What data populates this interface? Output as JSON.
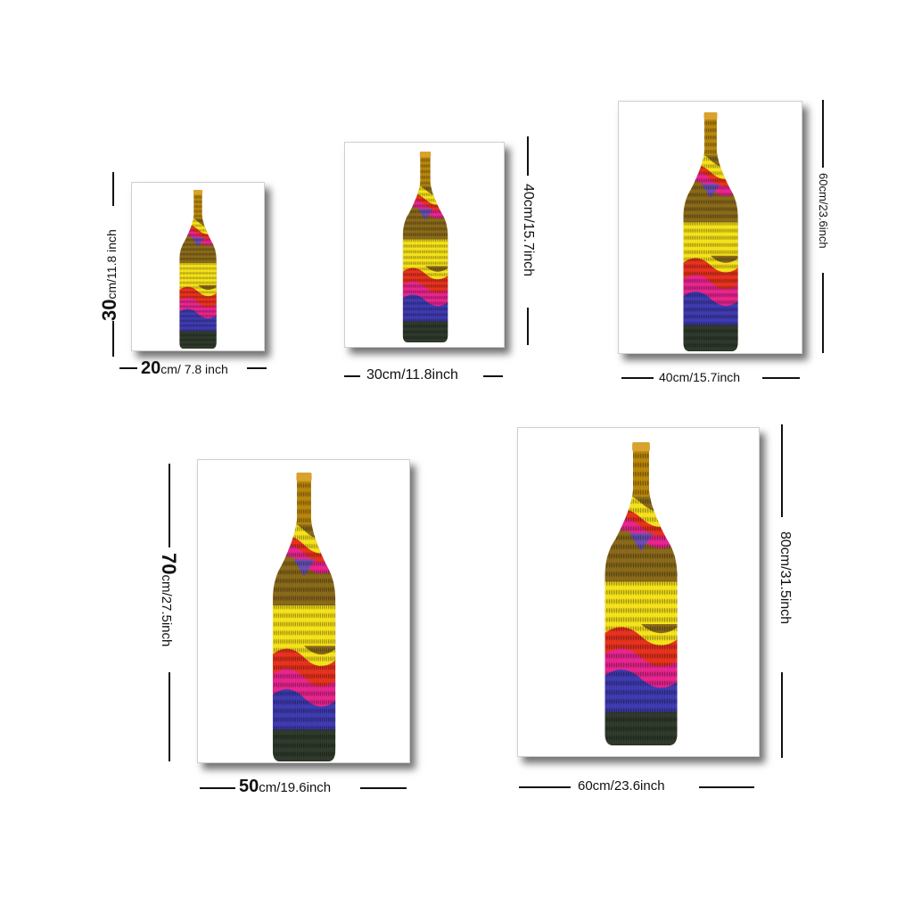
{
  "sizes": [
    {
      "width_num": "20",
      "width_unit": "cm/ 7.8 inch",
      "height_num": "30",
      "height_unit": "cm/11.8 inch"
    },
    {
      "width": "30cm/11.8inch",
      "height": "40cm/15.7inch"
    },
    {
      "width": "40cm/15.7inch",
      "height": "60cm/23.6inch"
    },
    {
      "width_num": "50",
      "width_unit": "cm/19.6inch",
      "height_num": "70",
      "height_unit": "cm/27.5inch"
    },
    {
      "width": "60cm/23.6inch",
      "height": "80cm/31.5inch"
    }
  ],
  "colors": {
    "glass": "#8a6a1a",
    "cap": "#d9a22c",
    "yellow": "#f6e21a",
    "red": "#e8321e",
    "pink": "#e8258f",
    "blue": "#3f3bb0",
    "dark": "#2f3a2c",
    "outline": "#b38b14"
  }
}
